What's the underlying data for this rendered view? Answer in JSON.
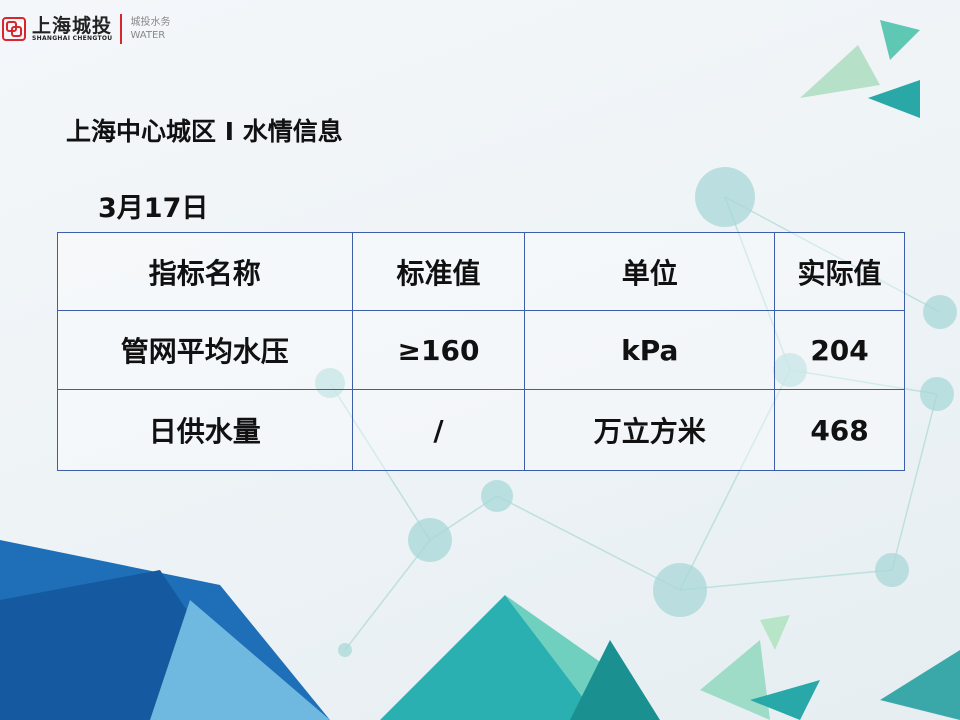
{
  "logo": {
    "name_cn": "上海城投",
    "name_en": "SHANGHAI CHENGTOU",
    "sub_cn": "城投水务",
    "sub_en": "WATER",
    "brand_color": "#d9262c"
  },
  "title": "上海中心城区 I 水情信息",
  "date": "3月17日",
  "table": {
    "headers": [
      "指标名称",
      "标准值",
      "单位",
      "实际值"
    ],
    "rows": [
      [
        "管网平均水压",
        "≥160",
        "kPa",
        "204"
      ],
      [
        "日供水量",
        "/",
        "万立方米",
        "468"
      ]
    ],
    "border_color": "#3c5fa7"
  }
}
